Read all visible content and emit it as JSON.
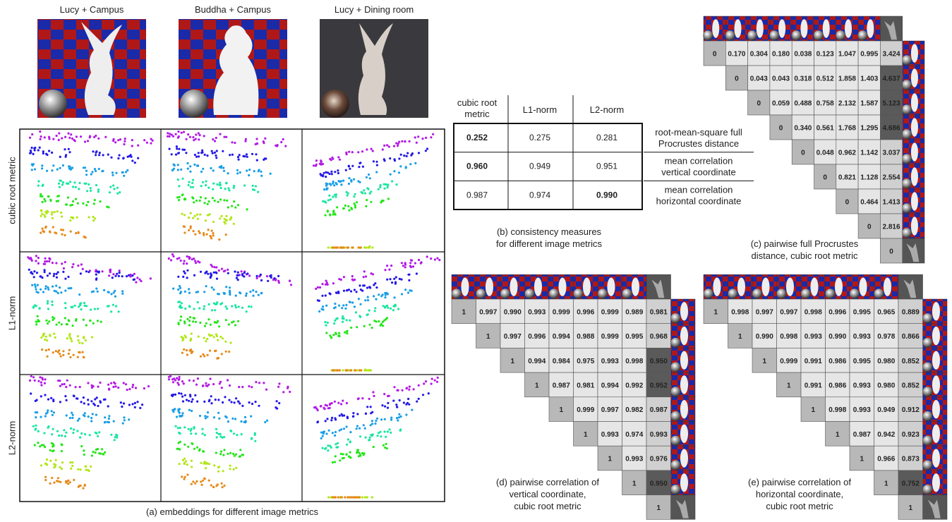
{
  "panel_a": {
    "column_titles": [
      "Lucy + Campus",
      "Buddha + Campus",
      "Lucy + Dining room"
    ],
    "row_labels": [
      "cubic root metric",
      "L1-norm",
      "L2-norm"
    ],
    "caption": "(a) embeddings for different image metrics"
  },
  "panel_b": {
    "columns": [
      [
        "cubic root",
        "metric"
      ],
      [
        "L1-norm"
      ],
      [
        "L2-norm"
      ]
    ],
    "rows": [
      {
        "label": [
          "root-mean-square full",
          "Procrustes distance"
        ],
        "values": [
          "0.252",
          "0.275",
          "0.281"
        ],
        "bold": 0
      },
      {
        "label": [
          "mean correlation",
          "vertical coordinate"
        ],
        "values": [
          "0.960",
          "0.949",
          "0.951"
        ],
        "bold": 0
      },
      {
        "label": [
          "mean correlation",
          "horizontal coordinate"
        ],
        "values": [
          "0.987",
          "0.974",
          "0.990"
        ],
        "bold": 2
      }
    ],
    "caption": [
      "(b) consistency measures",
      "for different image metrics"
    ]
  },
  "panel_c": {
    "matrix": [
      [
        "0",
        "0.170",
        "0.304",
        "0.180",
        "0.038",
        "0.123",
        "1.047",
        "0.995",
        "3.424"
      ],
      [
        "0",
        "0.043",
        "0.043",
        "0.318",
        "0.512",
        "1.858",
        "1.403",
        "4.637"
      ],
      [
        "0",
        "0.059",
        "0.488",
        "0.758",
        "2.132",
        "1.587",
        "5.123"
      ],
      [
        "0",
        "0.340",
        "0.561",
        "1.768",
        "1.295",
        "4.686"
      ],
      [
        "0",
        "0.048",
        "0.962",
        "1.142",
        "3.037"
      ],
      [
        "0",
        "0.821",
        "1.128",
        "2.554"
      ],
      [
        "0",
        "0.464",
        "1.413"
      ],
      [
        "0",
        "2.816"
      ],
      [
        "0"
      ]
    ],
    "highlight": [
      [
        1,
        7
      ],
      [
        2,
        6
      ],
      [
        3,
        5
      ]
    ],
    "caption": [
      "(c) pairwise full Procrustes",
      "distance, cubic root metric"
    ]
  },
  "panel_d": {
    "matrix": [
      [
        "1",
        "0.997",
        "0.990",
        "0.993",
        "0.999",
        "0.996",
        "0.999",
        "0.989",
        "0.981"
      ],
      [
        "1",
        "0.997",
        "0.996",
        "0.994",
        "0.988",
        "0.999",
        "0.995",
        "0.968"
      ],
      [
        "1",
        "0.994",
        "0.984",
        "0.975",
        "0.993",
        "0.998",
        "0.950"
      ],
      [
        "1",
        "0.987",
        "0.981",
        "0.994",
        "0.992",
        "0.952"
      ],
      [
        "1",
        "0.999",
        "0.997",
        "0.982",
        "0.987"
      ],
      [
        "1",
        "0.993",
        "0.974",
        "0.993"
      ],
      [
        "1",
        "0.993",
        "0.976"
      ],
      [
        "1",
        "0.950"
      ],
      [
        "1"
      ]
    ],
    "highlight": [
      [
        2,
        6
      ],
      [
        3,
        5
      ],
      [
        7,
        1
      ]
    ],
    "caption": [
      "(d) pairwise correlation of",
      "vertical coordinate,",
      "cubic root metric"
    ]
  },
  "panel_e": {
    "matrix": [
      [
        "1",
        "0.998",
        "0.997",
        "0.997",
        "0.998",
        "0.996",
        "0.995",
        "0.965",
        "0.889"
      ],
      [
        "1",
        "0.990",
        "0.998",
        "0.993",
        "0.990",
        "0.993",
        "0.978",
        "0.866"
      ],
      [
        "1",
        "0.999",
        "0.991",
        "0.986",
        "0.995",
        "0.980",
        "0.852"
      ],
      [
        "1",
        "0.991",
        "0.986",
        "0.993",
        "0.980",
        "0.852"
      ],
      [
        "1",
        "0.998",
        "0.993",
        "0.949",
        "0.912"
      ],
      [
        "1",
        "0.987",
        "0.942",
        "0.923"
      ],
      [
        "1",
        "0.966",
        "0.873"
      ],
      [
        "1",
        "0.752"
      ],
      [
        "1"
      ]
    ],
    "highlight": [
      [
        7,
        1
      ]
    ],
    "caption": [
      "(e) pairwise correlation of",
      "horizontal coordinate,",
      "cubic root metric"
    ]
  }
}
